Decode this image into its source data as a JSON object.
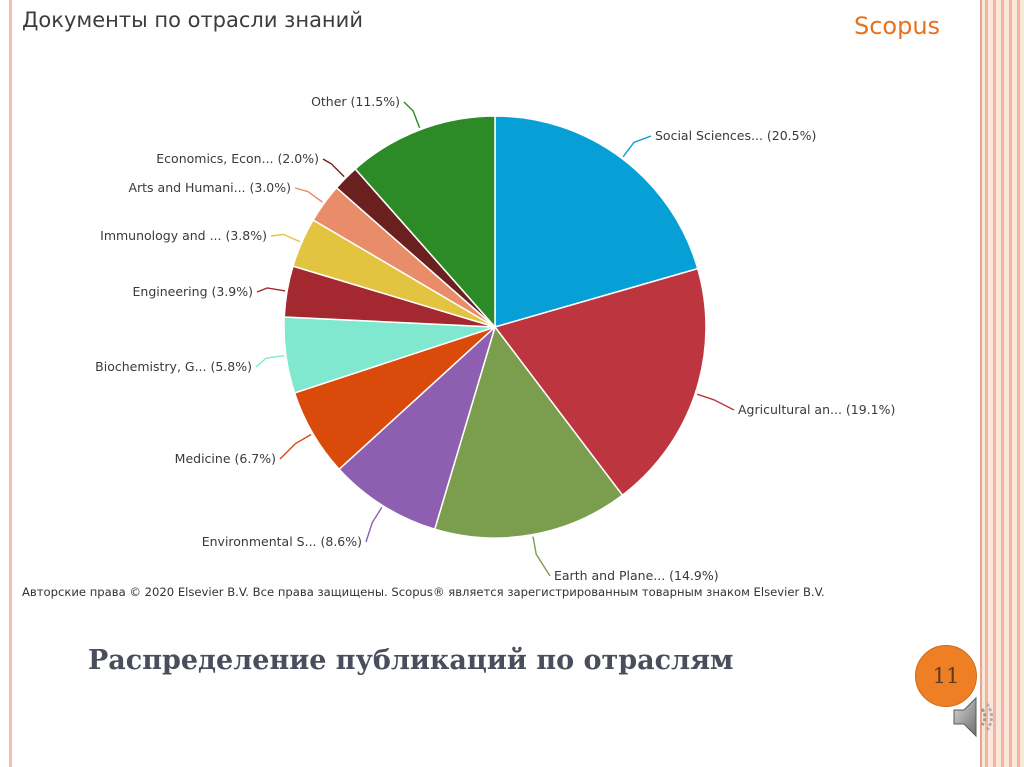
{
  "chart_data": {
    "type": "pie",
    "title": "Документы по отрасли знаний",
    "slices": [
      {
        "label": "Social Sciences... (20.5%)",
        "value": 20.5,
        "color": "#07a0d6"
      },
      {
        "label": "Agricultural an... (19.1%)",
        "value": 19.1,
        "color": "#bd363f"
      },
      {
        "label": "Earth and Plane... (14.9%)",
        "value": 14.9,
        "color": "#7b9d4e"
      },
      {
        "label": "Environmental S... (8.6%)",
        "value": 8.6,
        "color": "#8e5fb0"
      },
      {
        "label": "Medicine (6.7%)",
        "value": 6.7,
        "color": "#d94a0b"
      },
      {
        "label": "Biochemistry, G... (5.8%)",
        "value": 5.8,
        "color": "#7fe8cf"
      },
      {
        "label": "Engineering (3.9%)",
        "value": 3.9,
        "color": "#a3282f"
      },
      {
        "label": "Immunology and ... (3.8%)",
        "value": 3.8,
        "color": "#e2c440"
      },
      {
        "label": "Arts and Humani... (3.0%)",
        "value": 3.0,
        "color": "#e98c6a"
      },
      {
        "label": "Economics, Econ... (2.0%)",
        "value": 2.0,
        "color": "#6b2020"
      },
      {
        "label": "Other (11.5%)",
        "value": 11.5,
        "color": "#2c8a27"
      }
    ]
  },
  "brand": "Scopus",
  "copyright": "Авторские права © 2020 Elsevier B.V. Все права защищены. Scopus® является зарегистрированным товарным знаком Elsevier B.V.",
  "slide": {
    "caption": "Распределение публикаций по отраслям",
    "page_number": "11",
    "speaker_icon": "speaker-icon"
  }
}
